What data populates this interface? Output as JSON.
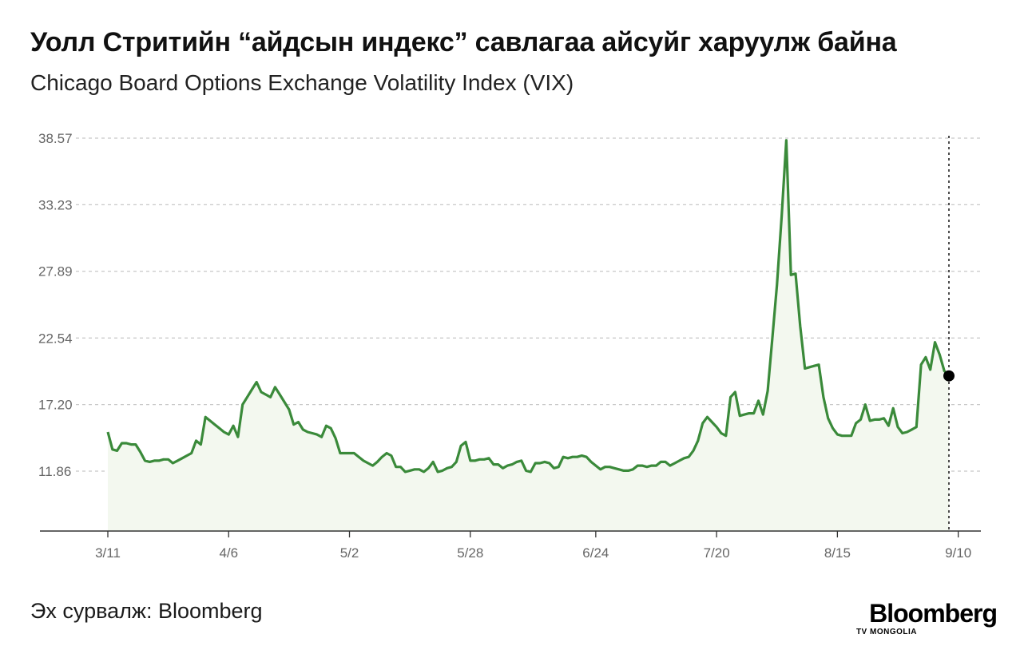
{
  "header": {
    "title": "Уолл Стритийн “айдсын индекс” савлагаа айсуйг харуулж байна",
    "subtitle": "Chicago Board Options Exchange Volatility Index (VIX)"
  },
  "footer": {
    "source": "Эх сурвалж: Bloomberg",
    "logo_main": "Bloomberg",
    "logo_sub": "TV MONGOLIA"
  },
  "colors": {
    "line": "#3a8a3a",
    "fill": "#f3f8ef",
    "grid": "#c8c8c8",
    "axis": "#333333",
    "tick_label": "#666666",
    "marker": "#000000"
  },
  "chart_data": {
    "type": "area",
    "ylim": [
      7.5,
      39.5
    ],
    "y_ticks": [
      11.86,
      17.2,
      22.54,
      27.89,
      33.23,
      38.57
    ],
    "y_tick_labels": [
      "11.86",
      "17.20",
      "22.54",
      "27.89",
      "33.23",
      "38.57"
    ],
    "x_ticks": [
      "3/11",
      "4/6",
      "5/2",
      "5/28",
      "6/24",
      "7/20",
      "8/15",
      "9/10"
    ],
    "x_tick_index": [
      0,
      26,
      52,
      78,
      105,
      131,
      157,
      183
    ],
    "grid": true,
    "marker_last_point": true,
    "vertical_reference_at_last": true,
    "series": [
      {
        "values": [
          15.0,
          13.6,
          13.5,
          14.1,
          14.1,
          14.0,
          14.0,
          13.4,
          12.7,
          12.6,
          12.7,
          12.7,
          12.8,
          12.8,
          12.5,
          12.7,
          12.9,
          13.1,
          13.3,
          14.3,
          14.0,
          16.2,
          15.9,
          15.6,
          15.3,
          15.0,
          14.8,
          15.5,
          14.6,
          17.2,
          17.8,
          18.4,
          19.0,
          18.2,
          18.0,
          17.8,
          18.6,
          18.0,
          17.4,
          16.8,
          15.6,
          15.8,
          15.2,
          15.0,
          14.9,
          14.8,
          14.6,
          15.5,
          15.3,
          14.5,
          13.3,
          13.3,
          13.3,
          13.3,
          13.0,
          12.7,
          12.5,
          12.3,
          12.6,
          13.0,
          13.3,
          13.1,
          12.2,
          12.2,
          11.8,
          11.9,
          12.0,
          12.0,
          11.8,
          12.1,
          12.6,
          11.8,
          11.9,
          12.1,
          12.2,
          12.6,
          13.9,
          14.2,
          12.7,
          12.7,
          12.8,
          12.8,
          12.9,
          12.4,
          12.4,
          12.1,
          12.3,
          12.4,
          12.6,
          12.7,
          11.9,
          11.8,
          12.5,
          12.5,
          12.6,
          12.5,
          12.1,
          12.2,
          13.0,
          12.9,
          13.0,
          13.0,
          13.1,
          13.0,
          12.6,
          12.3,
          12.0,
          12.2,
          12.2,
          12.1,
          12.0,
          11.9,
          11.9,
          12.0,
          12.3,
          12.3,
          12.2,
          12.3,
          12.3,
          12.6,
          12.6,
          12.3,
          12.5,
          12.7,
          12.9,
          13.0,
          13.5,
          14.3,
          15.7,
          16.2,
          15.8,
          15.4,
          14.9,
          14.7,
          17.8,
          18.2,
          16.3,
          16.4,
          16.5,
          16.5,
          17.5,
          16.4,
          18.3,
          22.5,
          26.8,
          32.3,
          38.4,
          27.6,
          27.7,
          23.5,
          20.1,
          20.2,
          20.3,
          20.4,
          17.8,
          16.1,
          15.3,
          14.8,
          14.7,
          14.7,
          14.7,
          15.7,
          16.0,
          17.2,
          15.9,
          16.0,
          16.0,
          16.1,
          15.5,
          16.9,
          15.4,
          14.9,
          15.0,
          15.2,
          15.4,
          20.4,
          21.0,
          20.0,
          22.2,
          21.2,
          19.9,
          19.5
        ]
      }
    ]
  }
}
